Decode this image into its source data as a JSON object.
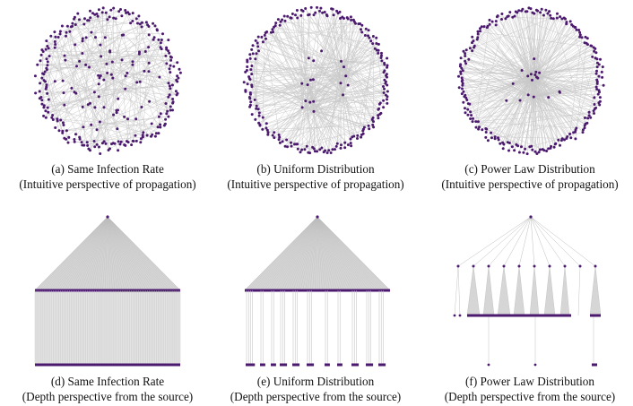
{
  "figure": {
    "panels": [
      {
        "id": "a",
        "row": "top",
        "layout": "circular",
        "distribution": "same",
        "caption_line1": "(a) Same Infection Rate",
        "caption_line2": "(Intuitive perspective of propagation)"
      },
      {
        "id": "b",
        "row": "top",
        "layout": "circular",
        "distribution": "uniform",
        "caption_line1": "(b) Uniform Distribution",
        "caption_line2": "(Intuitive perspective of propagation)"
      },
      {
        "id": "c",
        "row": "top",
        "layout": "circular",
        "distribution": "powerlaw",
        "caption_line1": "(c) Power Law Distribution",
        "caption_line2": "(Intuitive perspective of propagation)"
      },
      {
        "id": "d",
        "row": "bottom",
        "layout": "tree",
        "distribution": "same",
        "caption_line1": "(d) Same Infection Rate",
        "caption_line2": "(Depth perspective from the source)"
      },
      {
        "id": "e",
        "row": "bottom",
        "layout": "tree",
        "distribution": "uniform",
        "caption_line1": "(e) Uniform Distribution",
        "caption_line2": "(Depth perspective from the source)"
      },
      {
        "id": "f",
        "row": "bottom",
        "layout": "tree",
        "distribution": "powerlaw",
        "caption_line1": "(f) Power Law Distribution",
        "caption_line2": "(Depth perspective from the source)"
      }
    ],
    "colors": {
      "node": "#4b1a6e",
      "edge": "#c8c8c8",
      "fill": "#d6d6d6",
      "text": "#111111"
    }
  }
}
